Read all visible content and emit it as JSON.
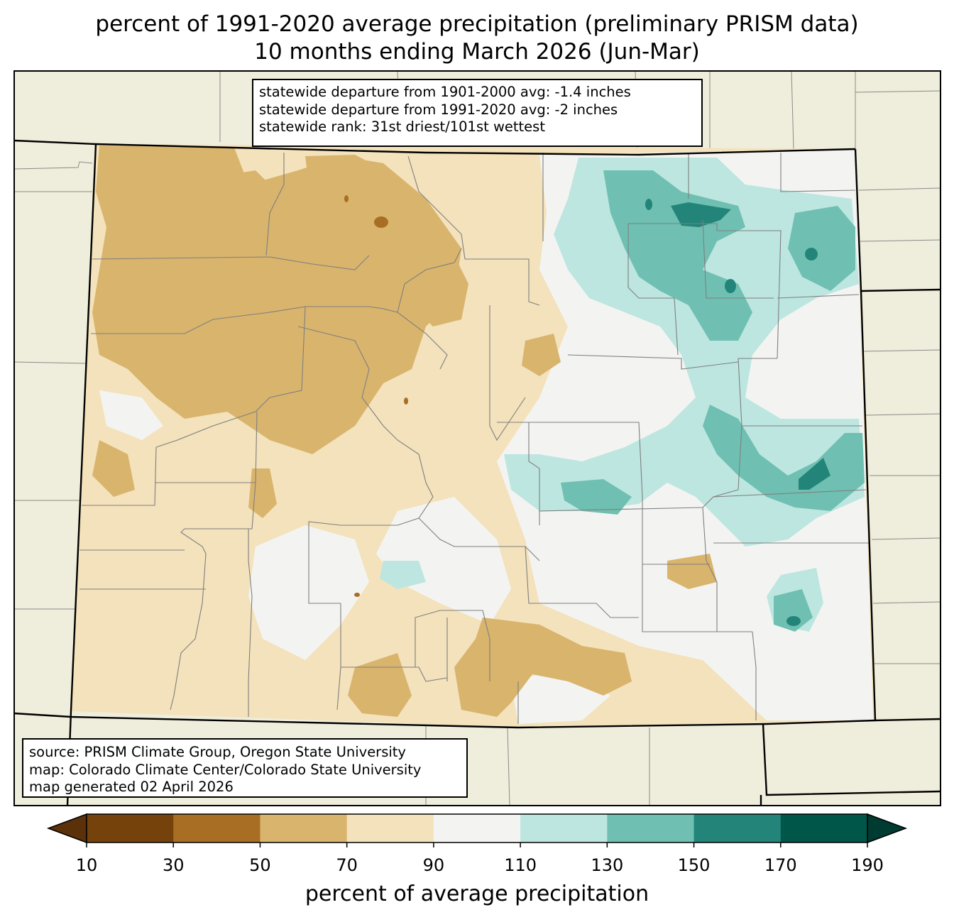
{
  "title": {
    "line1": "percent of 1991-2020 average precipitation (preliminary PRISM data)",
    "line2": "10 months ending March 2026 (Jun-Mar)"
  },
  "stats": {
    "line1": "statewide departure from 1901-2000 avg: -1.4 inches",
    "line2": "statewide departure from 1991-2020 avg: -2 inches",
    "line3": "statewide rank: 31st driest/101st wettest"
  },
  "credits": {
    "line1": "source: PRISM Climate Group, Oregon State University",
    "line2": "map: Colorado Climate Center/Colorado State University",
    "line3": "map generated 02 April 2026"
  },
  "colorbar": {
    "label": "percent of average precipitation",
    "ticks": [
      "10",
      "30",
      "50",
      "70",
      "90",
      "110",
      "130",
      "150",
      "170",
      "190"
    ],
    "colors": [
      "#75420b",
      "#a86e23",
      "#d9b46d",
      "#f3e2bb",
      "#f3f4f2",
      "#bde6e0",
      "#6fc0b2",
      "#238579",
      "#01564a"
    ],
    "under_color": "#5a3109",
    "over_color": "#003b31"
  },
  "map": {
    "background_color": "#efeddb",
    "region": "Colorado",
    "dominant_fill_west": "percent 50-70 and 70-90 (below average)",
    "dominant_fill_east": "percent 90-150 (near to above average)"
  }
}
